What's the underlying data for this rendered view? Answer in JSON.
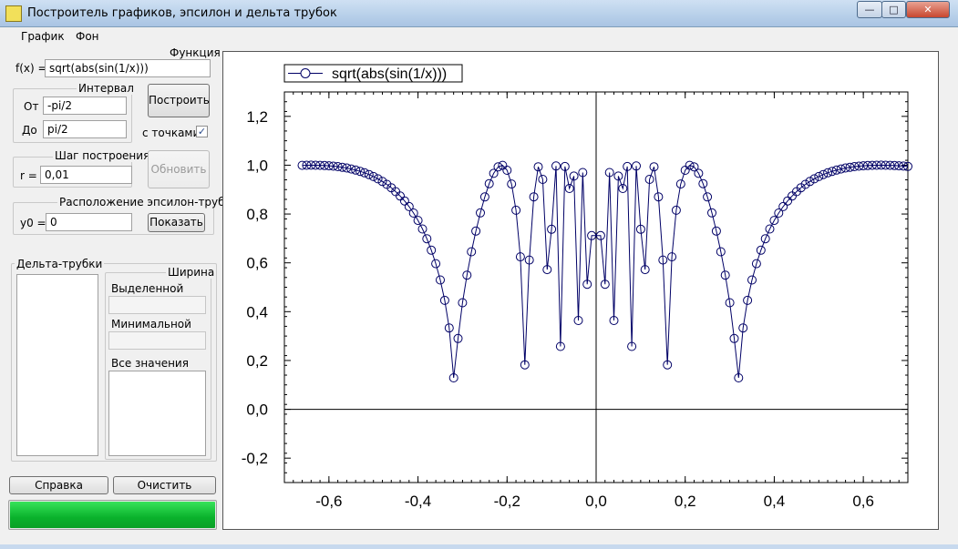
{
  "window": {
    "title": "Построитель графиков, эпсилон и дельта трубок",
    "icon": "app-chart-icon",
    "buttons": {
      "minimize": "minimize-icon",
      "maximize": "maximize-icon",
      "close": "close-icon"
    }
  },
  "menu": {
    "items": [
      "График",
      "Фон"
    ]
  },
  "function_group": {
    "title": "Функция",
    "label": "f(x) =",
    "value": "sqrt(abs(sin(1/x)))"
  },
  "interval_group": {
    "title": "Интервал",
    "from_label": "От",
    "from_value": "-pi/2",
    "to_label": "До",
    "to_value": "pi/2"
  },
  "build_button": "Построить",
  "points_checkbox": {
    "label": "с точками",
    "checked": true
  },
  "step_group": {
    "title": "Шаг построения",
    "label": "r =",
    "value": "0,01"
  },
  "refresh_button": "Обновить",
  "epsilon_group": {
    "title": "Расположение эпсилон-трубки",
    "label": "y0 =",
    "value": "0",
    "show_button": "Показать"
  },
  "delta_group": {
    "title": "Дельта-трубки",
    "width_title": "Ширина",
    "selected_label": "Выделенной",
    "minimal_label": "Минимальной",
    "all_values_label": "Все значения"
  },
  "help_button": "Справка",
  "clear_button": "Очистить",
  "progress": {
    "fraction": 1.0,
    "color": "#0ab22c"
  },
  "chart_data": {
    "type": "line",
    "marker": "circle",
    "series_color": "#000066",
    "legend": "sqrt(abs(sin(1/x)))",
    "legend_position": "top-left",
    "xlim": [
      -0.7,
      0.7
    ],
    "ylim": [
      -0.3,
      1.3
    ],
    "x_ticks": [
      "-0,6",
      "-0,4",
      "-0,2",
      "0,0",
      "0,2",
      "0,4",
      "0,6"
    ],
    "x_tick_values": [
      -0.6,
      -0.4,
      -0.2,
      0.0,
      0.2,
      0.4,
      0.6
    ],
    "y_ticks": [
      "1,2",
      "1,0",
      "0,8",
      "0,6",
      "0,4",
      "0,2",
      "0,0",
      "-0,2"
    ],
    "y_tick_values": [
      1.2,
      1.0,
      0.8,
      0.6,
      0.4,
      0.2,
      0.0,
      -0.2
    ],
    "x_start": -0.66,
    "x_end": 0.7,
    "x_step": 0.01,
    "axes_through_origin": true,
    "grid": false
  }
}
